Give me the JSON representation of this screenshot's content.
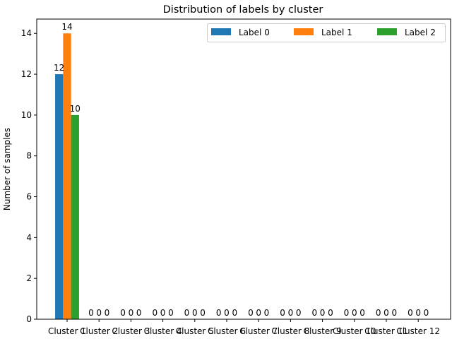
{
  "chart_data": {
    "type": "bar",
    "title": "Distribution of labels by cluster",
    "xlabel": "",
    "ylabel": "Number of samples",
    "categories": [
      "Cluster 1",
      "Cluster 2",
      "Cluster 3",
      "Cluster 4",
      "Cluster 5",
      "Cluster 6",
      "Cluster 7",
      "Cluster 8",
      "Cluster 9",
      "Cluster 10",
      "Cluster 11",
      "Cluster 12"
    ],
    "series": [
      {
        "name": "Label 0",
        "color": "#1f77b4",
        "values": [
          12,
          0,
          0,
          0,
          0,
          0,
          0,
          0,
          0,
          0,
          0,
          0
        ]
      },
      {
        "name": "Label 1",
        "color": "#ff7f0e",
        "values": [
          14,
          0,
          0,
          0,
          0,
          0,
          0,
          0,
          0,
          0,
          0,
          0
        ]
      },
      {
        "name": "Label 2",
        "color": "#2ca02c",
        "values": [
          10,
          0,
          0,
          0,
          0,
          0,
          0,
          0,
          0,
          0,
          0,
          0
        ]
      }
    ],
    "ylim": [
      0,
      14.7
    ],
    "yticks": [
      0,
      2,
      4,
      6,
      8,
      10,
      12,
      14
    ],
    "grid": false,
    "legend": "top-right",
    "data_labels": true
  }
}
